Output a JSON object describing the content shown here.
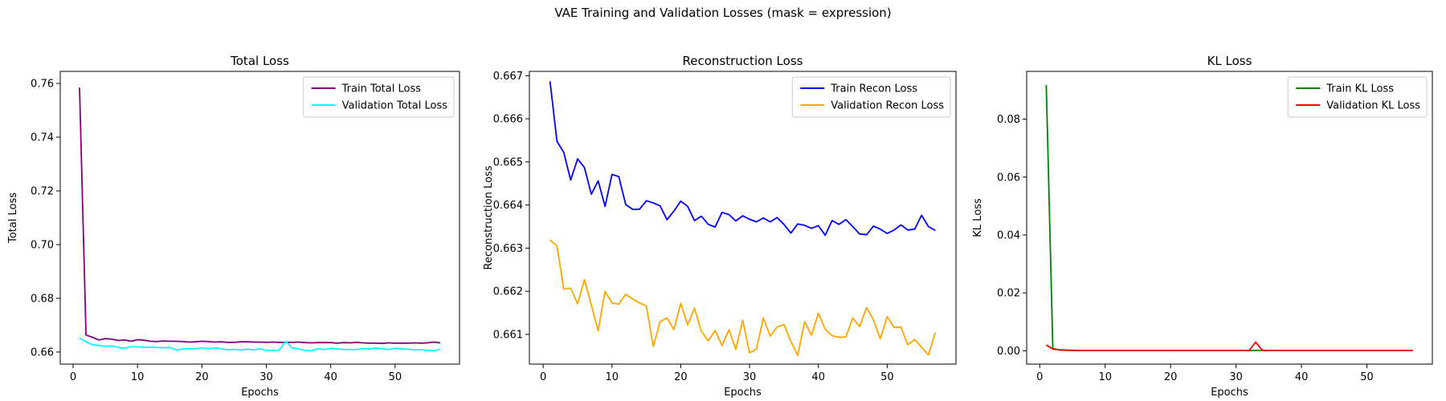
{
  "figure": {
    "suptitle": "VAE Training and Validation Losses (mask = expression)"
  },
  "chart_data": [
    {
      "type": "line",
      "title": "Total Loss",
      "xlabel": "Epochs",
      "ylabel": "Total Loss",
      "xlim": [
        -2,
        60
      ],
      "ylim": [
        0.6555,
        0.7645
      ],
      "xticks": [
        0,
        10,
        20,
        30,
        40,
        50
      ],
      "yticks": [
        0.66,
        0.68,
        0.7,
        0.72,
        0.74,
        0.76
      ],
      "ytick_labels": [
        "0.66",
        "0.68",
        "0.70",
        "0.72",
        "0.74",
        "0.76"
      ],
      "legend": "top-right",
      "grid": false,
      "series": [
        {
          "name": "Train Total Loss",
          "color": "#800080",
          "x": [
            1,
            2,
            3,
            4,
            5,
            6,
            7,
            8,
            9,
            10,
            11,
            12,
            13,
            14,
            15,
            16,
            17,
            18,
            19,
            20,
            21,
            22,
            23,
            24,
            25,
            26,
            27,
            28,
            29,
            30,
            31,
            32,
            33,
            34,
            35,
            36,
            37,
            38,
            39,
            40,
            41,
            42,
            43,
            44,
            45,
            46,
            47,
            48,
            49,
            50,
            51,
            52,
            53,
            54,
            55,
            56,
            57
          ],
          "y": [
            0.7585,
            0.6663,
            0.6655,
            0.6645,
            0.665,
            0.6648,
            0.6643,
            0.6645,
            0.664,
            0.6646,
            0.6644,
            0.664,
            0.6639,
            0.6641,
            0.664,
            0.664,
            0.6639,
            0.6637,
            0.6638,
            0.664,
            0.6639,
            0.6637,
            0.6638,
            0.6636,
            0.6636,
            0.6638,
            0.6638,
            0.6637,
            0.6637,
            0.6636,
            0.6637,
            0.6636,
            0.6636,
            0.6636,
            0.6637,
            0.6635,
            0.6634,
            0.6635,
            0.6635,
            0.6635,
            0.6633,
            0.6635,
            0.6634,
            0.6636,
            0.6634,
            0.6633,
            0.6633,
            0.6632,
            0.6634,
            0.6633,
            0.6633,
            0.6633,
            0.6634,
            0.6633,
            0.6634,
            0.6637,
            0.6634
          ]
        },
        {
          "name": "Validation Total Loss",
          "color": "#00ffff",
          "x": [
            1,
            2,
            3,
            4,
            5,
            6,
            7,
            8,
            9,
            10,
            11,
            12,
            13,
            14,
            15,
            16,
            17,
            18,
            19,
            20,
            21,
            22,
            23,
            24,
            25,
            26,
            27,
            28,
            29,
            30,
            31,
            32,
            33,
            34,
            35,
            36,
            37,
            38,
            39,
            40,
            41,
            42,
            43,
            44,
            45,
            46,
            47,
            48,
            49,
            50,
            51,
            52,
            53,
            54,
            55,
            56,
            57
          ],
          "y": [
            0.6652,
            0.6638,
            0.6627,
            0.6624,
            0.6621,
            0.6623,
            0.6617,
            0.6614,
            0.662,
            0.6619,
            0.6617,
            0.6619,
            0.6617,
            0.6616,
            0.6617,
            0.6607,
            0.6611,
            0.6613,
            0.6612,
            0.6616,
            0.6612,
            0.6616,
            0.6612,
            0.6608,
            0.661,
            0.6607,
            0.6611,
            0.6608,
            0.6612,
            0.6606,
            0.6606,
            0.6607,
            0.664,
            0.6615,
            0.6612,
            0.6606,
            0.6605,
            0.6612,
            0.6609,
            0.6614,
            0.6611,
            0.661,
            0.6609,
            0.6609,
            0.6613,
            0.6611,
            0.6615,
            0.6612,
            0.6609,
            0.6614,
            0.6611,
            0.6611,
            0.6607,
            0.6609,
            0.6606,
            0.6605,
            0.661
          ]
        }
      ]
    },
    {
      "type": "line",
      "title": "Reconstruction Loss",
      "xlabel": "Epochs",
      "ylabel": "Reconstruction Loss",
      "xlim": [
        -2,
        60
      ],
      "ylim": [
        0.66031,
        0.6671
      ],
      "xticks": [
        0,
        10,
        20,
        30,
        40,
        50
      ],
      "yticks": [
        0.661,
        0.662,
        0.663,
        0.664,
        0.665,
        0.666,
        0.667
      ],
      "ytick_labels": [
        "0.661",
        "0.662",
        "0.663",
        "0.664",
        "0.665",
        "0.666",
        "0.667"
      ],
      "legend": "top-right",
      "grid": false,
      "series": [
        {
          "name": "Train Recon Loss",
          "color": "#0000ff",
          "x": [
            1,
            2,
            3,
            4,
            5,
            6,
            7,
            8,
            9,
            10,
            11,
            12,
            13,
            14,
            15,
            16,
            17,
            18,
            19,
            20,
            21,
            22,
            23,
            24,
            25,
            26,
            27,
            28,
            29,
            30,
            31,
            32,
            33,
            34,
            35,
            36,
            37,
            38,
            39,
            40,
            41,
            42,
            43,
            44,
            45,
            46,
            47,
            48,
            49,
            50,
            51,
            52,
            53,
            54,
            55,
            56,
            57
          ],
          "y": [
            0.66687,
            0.66548,
            0.66522,
            0.66458,
            0.66507,
            0.66487,
            0.66425,
            0.66456,
            0.66397,
            0.66471,
            0.66466,
            0.66401,
            0.6639,
            0.6639,
            0.6641,
            0.66405,
            0.66398,
            0.66366,
            0.66386,
            0.66409,
            0.66397,
            0.66364,
            0.66374,
            0.66355,
            0.66349,
            0.66383,
            0.66378,
            0.66363,
            0.66375,
            0.66367,
            0.66361,
            0.6637,
            0.66361,
            0.66371,
            0.66355,
            0.66335,
            0.66356,
            0.66353,
            0.66346,
            0.66352,
            0.6633,
            0.66364,
            0.66355,
            0.66366,
            0.6635,
            0.66333,
            0.66331,
            0.66351,
            0.66344,
            0.66334,
            0.66342,
            0.66354,
            0.66342,
            0.66344,
            0.66376,
            0.6635,
            0.66341
          ]
        },
        {
          "name": "Validation Recon Loss",
          "color": "#ffa500",
          "x": [
            1,
            2,
            3,
            4,
            5,
            6,
            7,
            8,
            9,
            10,
            11,
            12,
            13,
            14,
            15,
            16,
            17,
            18,
            19,
            20,
            21,
            22,
            23,
            24,
            25,
            26,
            27,
            28,
            29,
            30,
            31,
            32,
            33,
            34,
            35,
            36,
            37,
            38,
            39,
            40,
            41,
            42,
            43,
            44,
            45,
            46,
            47,
            48,
            49,
            50,
            51,
            52,
            53,
            54,
            55,
            56,
            57
          ],
          "y": [
            0.66319,
            0.66305,
            0.66205,
            0.66207,
            0.66171,
            0.66227,
            0.66168,
            0.66108,
            0.662,
            0.66173,
            0.6617,
            0.66193,
            0.66182,
            0.66173,
            0.66166,
            0.66072,
            0.66129,
            0.66138,
            0.66111,
            0.66172,
            0.66122,
            0.66161,
            0.66107,
            0.66085,
            0.66109,
            0.66074,
            0.66111,
            0.66065,
            0.66133,
            0.66057,
            0.66066,
            0.66138,
            0.66096,
            0.66117,
            0.66123,
            0.66084,
            0.66051,
            0.66129,
            0.66098,
            0.66149,
            0.66112,
            0.66097,
            0.66093,
            0.66094,
            0.66138,
            0.66118,
            0.66162,
            0.66134,
            0.6609,
            0.66141,
            0.66116,
            0.66117,
            0.66076,
            0.66088,
            0.6607,
            0.66052,
            0.66104
          ]
        }
      ]
    },
    {
      "type": "line",
      "title": "KL Loss",
      "xlabel": "Epochs",
      "ylabel": "KL Loss",
      "xlim": [
        -2,
        60
      ],
      "ylim": [
        -0.0046,
        0.0965
      ],
      "xticks": [
        0,
        10,
        20,
        30,
        40,
        50
      ],
      "yticks": [
        0.0,
        0.02,
        0.04,
        0.06,
        0.08
      ],
      "ytick_labels": [
        "0.00",
        "0.02",
        "0.04",
        "0.06",
        "0.08"
      ],
      "legend": "top-right",
      "grid": false,
      "series": [
        {
          "name": "Train KL Loss",
          "color": "#008000",
          "x": [
            1,
            2,
            3,
            4,
            5,
            6,
            7,
            8,
            9,
            10,
            11,
            12,
            13,
            14,
            15,
            16,
            17,
            18,
            19,
            20,
            21,
            22,
            23,
            24,
            25,
            26,
            27,
            28,
            29,
            30,
            31,
            32,
            33,
            34,
            35,
            36,
            37,
            38,
            39,
            40,
            41,
            42,
            43,
            44,
            45,
            46,
            47,
            48,
            49,
            50,
            51,
            52,
            53,
            54,
            55,
            56,
            57
          ],
          "y": [
            0.0918,
            0.0008,
            0.0003,
            0.0002,
            0.0001,
            0.0001,
            0.0001,
            0.0001,
            0.0001,
            0.0001,
            0.0001,
            0.0001,
            0.0001,
            0.0001,
            0.0001,
            0.0001,
            0.0001,
            0.0001,
            0.0001,
            0.0001,
            0.0001,
            0.0001,
            0.0001,
            0.0001,
            0.0001,
            0.0001,
            0.0001,
            0.0001,
            0.0001,
            0.0001,
            0.0001,
            0.0001,
            0.0001,
            0.0001,
            0.0001,
            0.0001,
            0.0001,
            0.0001,
            0.0001,
            0.0001,
            0.0001,
            0.0001,
            0.0001,
            0.0001,
            0.0001,
            0.0001,
            0.0001,
            0.0001,
            0.0001,
            0.0001,
            0.0001,
            0.0001,
            0.0001,
            0.0001,
            0.0001,
            0.0001,
            0.0001
          ]
        },
        {
          "name": "Validation KL Loss",
          "color": "#ff0000",
          "x": [
            1,
            2,
            3,
            4,
            5,
            6,
            7,
            8,
            9,
            10,
            11,
            12,
            13,
            14,
            15,
            16,
            17,
            18,
            19,
            20,
            21,
            22,
            23,
            24,
            25,
            26,
            27,
            28,
            29,
            30,
            31,
            32,
            33,
            34,
            35,
            36,
            37,
            38,
            39,
            40,
            41,
            42,
            43,
            44,
            45,
            46,
            47,
            48,
            49,
            50,
            51,
            52,
            53,
            54,
            55,
            56,
            57
          ],
          "y": [
            0.002,
            0.0006,
            0.0003,
            0.0002,
            0.0002,
            0.0001,
            0.0001,
            0.0001,
            0.0001,
            0.0001,
            0.0001,
            0.0001,
            0.0001,
            0.0001,
            0.0001,
            0.0001,
            0.0001,
            0.0001,
            0.0001,
            0.0001,
            0.0001,
            0.0001,
            0.0001,
            0.0001,
            0.0001,
            0.0001,
            0.0001,
            0.0001,
            0.0001,
            0.0001,
            0.0001,
            0.0001,
            0.003,
            0.0002,
            0.0001,
            0.0001,
            0.0001,
            0.0001,
            0.0001,
            0.0001,
            0.0001,
            0.0001,
            0.0001,
            0.0001,
            0.0001,
            0.0001,
            0.0001,
            0.0001,
            0.0001,
            0.0001,
            0.0001,
            0.0001,
            0.0001,
            0.0001,
            0.0001,
            0.0001,
            0.0001
          ]
        }
      ]
    }
  ]
}
